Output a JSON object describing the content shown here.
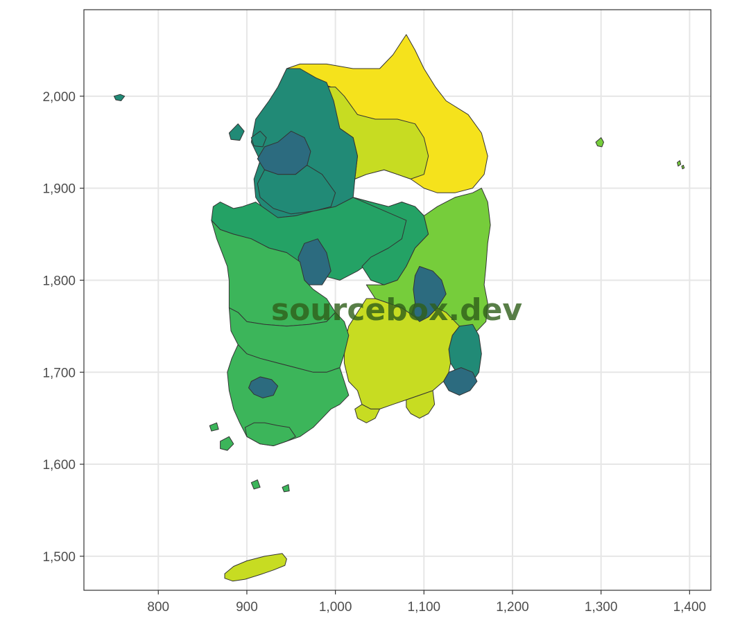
{
  "map": {
    "x_ticks": [
      800,
      900,
      1000,
      1100,
      1200,
      1300,
      1400
    ],
    "y_ticks": [
      1500,
      1600,
      1700,
      1800,
      1900,
      2000
    ],
    "x_tick_labels": [
      "800",
      "900",
      "1,000",
      "1,100",
      "1,200",
      "1,300",
      "1,400"
    ],
    "y_tick_labels": [
      "1,500",
      "1,600",
      "1,700",
      "1,800",
      "1,900",
      "2,000"
    ],
    "xlim": [
      716,
      1424
    ],
    "ylim": [
      1463,
      2094
    ],
    "grid": true,
    "colors": {
      "dark": "#2c6b7f",
      "teal": "#218a76",
      "green": "#24a265",
      "mid_green": "#3cb55a",
      "lime": "#76cd3b",
      "yellow_green": "#c7dc22",
      "yellow": "#f5e21c"
    }
  },
  "watermark": "sourcebox.dev"
}
